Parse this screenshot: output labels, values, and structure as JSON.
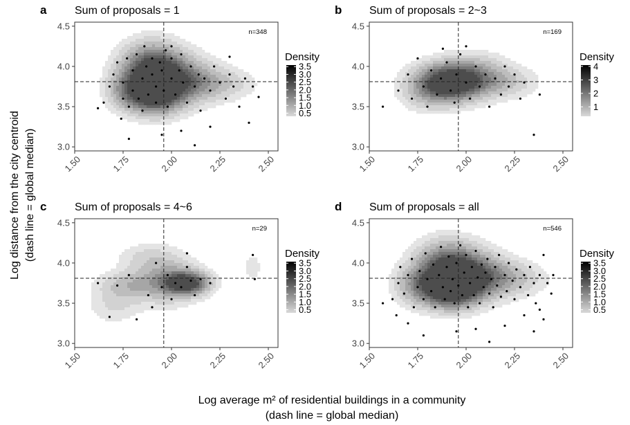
{
  "figure": {
    "xlabel_line1": "Log average m² of residential buildings in a community",
    "xlabel_line2": "(dash line = global median)",
    "ylabel_line1": "Log distance from the city centroid",
    "ylabel_line2": "(dash line = global median)"
  },
  "chart_data": [
    {
      "type": "density_contour_scatter",
      "panel": "a",
      "title": "Sum of proposals = 1",
      "n_label": "n=348",
      "xlim": [
        1.5,
        2.55
      ],
      "ylim": [
        2.95,
        4.55
      ],
      "xticks": [
        "1.50",
        "1.75",
        "2.00",
        "2.25",
        "2.50"
      ],
      "yticks": [
        "3.0",
        "3.5",
        "4.0",
        "4.5"
      ],
      "median_x": 1.96,
      "median_y": 3.81,
      "legend_title": "Density",
      "legend_ticks": [
        "3.5",
        "3.0",
        "2.5",
        "2.0",
        "1.5",
        "1.0",
        "0.5"
      ],
      "legend_max": 3.6,
      "points": [
        [
          1.65,
          3.55
        ],
        [
          1.68,
          3.75
        ],
        [
          1.7,
          3.9
        ],
        [
          1.72,
          4.05
        ],
        [
          1.75,
          3.6
        ],
        [
          1.75,
          3.8
        ],
        [
          1.77,
          4.1
        ],
        [
          1.78,
          3.5
        ],
        [
          1.8,
          3.95
        ],
        [
          1.8,
          3.7
        ],
        [
          1.82,
          4.15
        ],
        [
          1.83,
          3.6
        ],
        [
          1.85,
          3.85
        ],
        [
          1.85,
          3.45
        ],
        [
          1.87,
          4.0
        ],
        [
          1.88,
          3.65
        ],
        [
          1.9,
          3.9
        ],
        [
          1.9,
          4.1
        ],
        [
          1.92,
          3.55
        ],
        [
          1.92,
          3.75
        ],
        [
          1.94,
          4.05
        ],
        [
          1.95,
          3.95
        ],
        [
          1.96,
          3.7
        ],
        [
          1.97,
          4.2
        ],
        [
          1.98,
          3.5
        ],
        [
          2.0,
          3.85
        ],
        [
          2.0,
          4.1
        ],
        [
          2.02,
          3.65
        ],
        [
          2.04,
          3.95
        ],
        [
          2.05,
          4.15
        ],
        [
          2.06,
          3.8
        ],
        [
          2.08,
          3.55
        ],
        [
          2.1,
          4.0
        ],
        [
          2.12,
          3.75
        ],
        [
          2.14,
          3.9
        ],
        [
          2.15,
          3.45
        ],
        [
          2.17,
          3.85
        ],
        [
          2.2,
          3.7
        ],
        [
          2.22,
          4.0
        ],
        [
          2.25,
          3.8
        ],
        [
          2.28,
          3.6
        ],
        [
          2.3,
          3.9
        ],
        [
          2.32,
          3.75
        ],
        [
          2.35,
          3.5
        ],
        [
          2.38,
          3.85
        ],
        [
          2.4,
          3.3
        ],
        [
          2.42,
          3.75
        ],
        [
          2.45,
          3.62
        ],
        [
          1.62,
          3.48
        ],
        [
          1.95,
          3.15
        ],
        [
          2.05,
          3.2
        ],
        [
          2.12,
          3.02
        ],
        [
          1.78,
          3.1
        ],
        [
          2.2,
          3.25
        ],
        [
          1.86,
          4.25
        ],
        [
          2.0,
          4.25
        ],
        [
          1.74,
          3.35
        ],
        [
          2.3,
          4.12
        ]
      ],
      "blobs": [
        [
          1.9,
          3.97,
          0.11,
          0.22,
          1.0
        ],
        [
          1.91,
          3.64,
          0.1,
          0.17,
          0.95
        ],
        [
          2.06,
          3.83,
          0.12,
          0.2,
          0.55
        ],
        [
          2.24,
          3.78,
          0.13,
          0.14,
          0.3
        ],
        [
          1.76,
          3.7,
          0.07,
          0.16,
          0.35
        ]
      ]
    },
    {
      "type": "density_contour_scatter",
      "panel": "b",
      "title": "Sum of proposals = 2~3",
      "n_label": "n=169",
      "xlim": [
        1.5,
        2.55
      ],
      "ylim": [
        2.95,
        4.55
      ],
      "xticks": [
        "1.50",
        "1.75",
        "2.00",
        "2.25",
        "2.50"
      ],
      "yticks": [
        "3.0",
        "3.5",
        "4.0",
        "4.5"
      ],
      "median_x": 1.96,
      "median_y": 3.81,
      "legend_title": "Density",
      "legend_ticks": [
        "4",
        "3",
        "2",
        "1"
      ],
      "legend_max": 4.1,
      "points": [
        [
          1.57,
          3.5
        ],
        [
          1.65,
          3.7
        ],
        [
          1.7,
          3.9
        ],
        [
          1.72,
          3.6
        ],
        [
          1.75,
          4.1
        ],
        [
          1.78,
          3.75
        ],
        [
          1.8,
          3.5
        ],
        [
          1.82,
          3.95
        ],
        [
          1.85,
          3.65
        ],
        [
          1.87,
          3.85
        ],
        [
          1.9,
          4.05
        ],
        [
          1.92,
          3.7
        ],
        [
          1.94,
          3.55
        ],
        [
          1.95,
          3.9
        ],
        [
          1.97,
          4.15
        ],
        [
          2.0,
          3.8
        ],
        [
          2.02,
          3.6
        ],
        [
          2.05,
          4.0
        ],
        [
          2.07,
          3.75
        ],
        [
          2.1,
          3.9
        ],
        [
          2.12,
          3.5
        ],
        [
          2.15,
          3.85
        ],
        [
          2.18,
          3.65
        ],
        [
          2.2,
          4.0
        ],
        [
          2.22,
          3.75
        ],
        [
          2.25,
          3.9
        ],
        [
          2.28,
          3.6
        ],
        [
          2.3,
          3.8
        ],
        [
          2.35,
          3.15
        ],
        [
          2.38,
          3.65
        ],
        [
          1.88,
          4.22
        ],
        [
          2.0,
          4.25
        ]
      ],
      "blobs": [
        [
          1.92,
          3.8,
          0.11,
          0.16,
          1.0
        ],
        [
          2.05,
          3.88,
          0.12,
          0.18,
          0.45
        ],
        [
          1.8,
          3.72,
          0.1,
          0.18,
          0.35
        ],
        [
          2.22,
          3.8,
          0.11,
          0.13,
          0.25
        ]
      ]
    },
    {
      "type": "density_contour_scatter",
      "panel": "c",
      "title": "Sum of proposals = 4~6",
      "n_label": "n=29",
      "xlim": [
        1.5,
        2.55
      ],
      "ylim": [
        2.95,
        4.55
      ],
      "xticks": [
        "1.50",
        "1.75",
        "2.00",
        "2.25",
        "2.50"
      ],
      "yticks": [
        "3.0",
        "3.5",
        "4.0",
        "4.5"
      ],
      "median_x": 1.96,
      "median_y": 3.81,
      "legend_title": "Density",
      "legend_ticks": [
        "3.5",
        "3.0",
        "2.5",
        "2.0",
        "1.5",
        "1.0",
        "0.5"
      ],
      "legend_max": 3.6,
      "points": [
        [
          1.62,
          3.75
        ],
        [
          1.68,
          3.33
        ],
        [
          1.72,
          3.72
        ],
        [
          1.78,
          3.85
        ],
        [
          1.82,
          3.3
        ],
        [
          1.88,
          3.6
        ],
        [
          1.92,
          4.0
        ],
        [
          1.95,
          3.7
        ],
        [
          1.98,
          3.85
        ],
        [
          2.0,
          3.55
        ],
        [
          2.02,
          3.75
        ],
        [
          2.05,
          3.7
        ],
        [
          2.08,
          3.95
        ],
        [
          2.1,
          3.78
        ],
        [
          2.12,
          3.6
        ],
        [
          2.15,
          3.8
        ],
        [
          2.2,
          3.75
        ],
        [
          2.42,
          4.1
        ],
        [
          2.43,
          3.8
        ],
        [
          1.9,
          3.45
        ],
        [
          2.08,
          4.12
        ]
      ],
      "blobs": [
        [
          2.08,
          3.75,
          0.08,
          0.1,
          1.0
        ],
        [
          1.97,
          3.8,
          0.11,
          0.22,
          0.45
        ],
        [
          1.77,
          3.72,
          0.11,
          0.12,
          0.35
        ],
        [
          1.7,
          3.45,
          0.09,
          0.14,
          0.2
        ],
        [
          2.42,
          3.95,
          0.03,
          0.12,
          0.18
        ],
        [
          1.85,
          4.08,
          0.1,
          0.12,
          0.15
        ]
      ]
    },
    {
      "type": "density_contour_scatter",
      "panel": "d",
      "title": "Sum of proposals = all",
      "n_label": "n=546",
      "xlim": [
        1.5,
        2.55
      ],
      "ylim": [
        2.95,
        4.55
      ],
      "xticks": [
        "1.50",
        "1.75",
        "2.00",
        "2.25",
        "2.50"
      ],
      "yticks": [
        "3.0",
        "3.5",
        "4.0",
        "4.5"
      ],
      "median_x": 1.96,
      "median_y": 3.81,
      "legend_title": "Density",
      "legend_ticks": [
        "3.5",
        "3.0",
        "2.5",
        "2.0",
        "1.5",
        "1.0",
        "0.5"
      ],
      "legend_max": 3.6,
      "points": [
        [
          1.57,
          3.5
        ],
        [
          1.62,
          3.55
        ],
        [
          1.65,
          3.75
        ],
        [
          1.66,
          3.95
        ],
        [
          1.68,
          3.62
        ],
        [
          1.7,
          3.85
        ],
        [
          1.72,
          4.05
        ],
        [
          1.73,
          3.45
        ],
        [
          1.75,
          3.7
        ],
        [
          1.76,
          3.9
        ],
        [
          1.78,
          3.55
        ],
        [
          1.79,
          4.12
        ],
        [
          1.8,
          3.8
        ],
        [
          1.82,
          3.65
        ],
        [
          1.83,
          3.98
        ],
        [
          1.84,
          3.45
        ],
        [
          1.86,
          3.85
        ],
        [
          1.87,
          4.2
        ],
        [
          1.88,
          3.7
        ],
        [
          1.89,
          3.55
        ],
        [
          1.9,
          3.95
        ],
        [
          1.91,
          4.08
        ],
        [
          1.92,
          3.65
        ],
        [
          1.93,
          3.8
        ],
        [
          1.94,
          3.5
        ],
        [
          1.95,
          4.0
        ],
        [
          1.96,
          3.72
        ],
        [
          1.97,
          4.22
        ],
        [
          1.98,
          3.6
        ],
        [
          1.99,
          3.88
        ],
        [
          2.0,
          4.1
        ],
        [
          2.01,
          3.45
        ],
        [
          2.02,
          3.75
        ],
        [
          2.03,
          3.95
        ],
        [
          2.04,
          3.6
        ],
        [
          2.05,
          4.15
        ],
        [
          2.06,
          3.82
        ],
        [
          2.07,
          3.5
        ],
        [
          2.08,
          3.98
        ],
        [
          2.09,
          3.7
        ],
        [
          2.1,
          3.88
        ],
        [
          2.11,
          4.05
        ],
        [
          2.12,
          3.62
        ],
        [
          2.13,
          3.8
        ],
        [
          2.14,
          3.45
        ],
        [
          2.15,
          3.95
        ],
        [
          2.16,
          3.72
        ],
        [
          2.17,
          4.1
        ],
        [
          2.18,
          3.58
        ],
        [
          2.2,
          3.85
        ],
        [
          2.21,
          3.65
        ],
        [
          2.22,
          4.0
        ],
        [
          2.24,
          3.78
        ],
        [
          2.25,
          3.55
        ],
        [
          2.26,
          3.92
        ],
        [
          2.28,
          3.7
        ],
        [
          2.3,
          3.85
        ],
        [
          2.32,
          3.6
        ],
        [
          2.33,
          3.95
        ],
        [
          2.35,
          3.75
        ],
        [
          2.36,
          3.5
        ],
        [
          2.38,
          3.85
        ],
        [
          2.4,
          3.3
        ],
        [
          2.42,
          3.75
        ],
        [
          2.44,
          3.62
        ],
        [
          2.45,
          3.85
        ],
        [
          2.4,
          4.1
        ],
        [
          2.35,
          3.15
        ],
        [
          2.12,
          3.02
        ],
        [
          1.78,
          3.1
        ],
        [
          2.2,
          3.22
        ],
        [
          1.95,
          3.15
        ],
        [
          2.05,
          3.18
        ],
        [
          2.3,
          3.35
        ],
        [
          2.38,
          3.42
        ],
        [
          1.64,
          3.35
        ],
        [
          1.7,
          3.25
        ]
      ],
      "blobs": [
        [
          1.9,
          3.95,
          0.11,
          0.22,
          0.85
        ],
        [
          1.92,
          3.66,
          0.1,
          0.16,
          1.0
        ],
        [
          2.04,
          3.85,
          0.12,
          0.2,
          0.65
        ],
        [
          2.22,
          3.8,
          0.13,
          0.15,
          0.35
        ],
        [
          1.74,
          3.72,
          0.08,
          0.17,
          0.4
        ]
      ]
    }
  ]
}
